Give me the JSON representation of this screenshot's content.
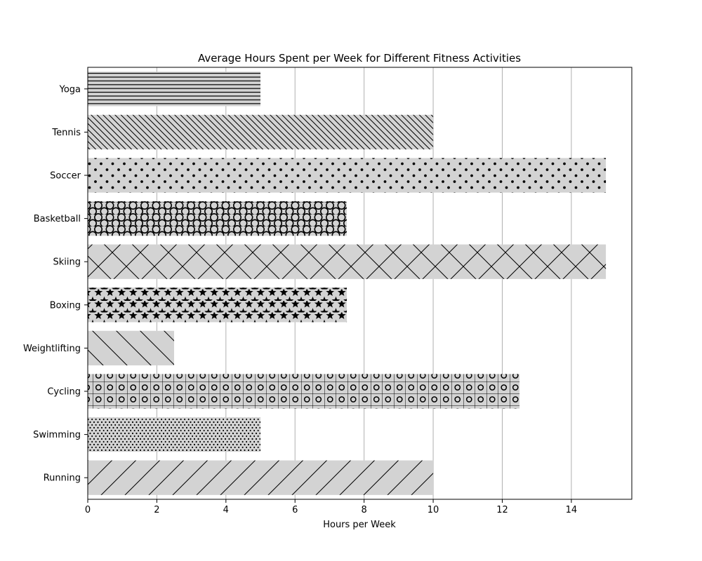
{
  "chart_data": {
    "type": "bar",
    "orientation": "horizontal",
    "title": "Average Hours Spent per Week for Different Fitness Activities",
    "xlabel": "Hours per Week",
    "ylabel": "",
    "xlim": [
      0,
      15.75
    ],
    "xticks": [
      0,
      2,
      4,
      6,
      8,
      10,
      12,
      14
    ],
    "grid": "vertical",
    "categories": [
      "Running",
      "Swimming",
      "Cycling",
      "Weightlifting",
      "Boxing",
      "Skiing",
      "Basketball",
      "Soccer",
      "Tennis",
      "Yoga"
    ],
    "values": [
      10,
      5,
      12.5,
      2.5,
      7.5,
      15,
      7.5,
      15,
      10,
      5
    ],
    "hatches": [
      "/",
      "..",
      "+o",
      "\\",
      "*",
      "x",
      "O",
      ".",
      "\\\\",
      "-"
    ],
    "colors": {
      "bar_fill": "#d3d3d3",
      "bar_edge": "#000000",
      "hatch": "#000000",
      "grid": "#b0b0b0"
    }
  }
}
